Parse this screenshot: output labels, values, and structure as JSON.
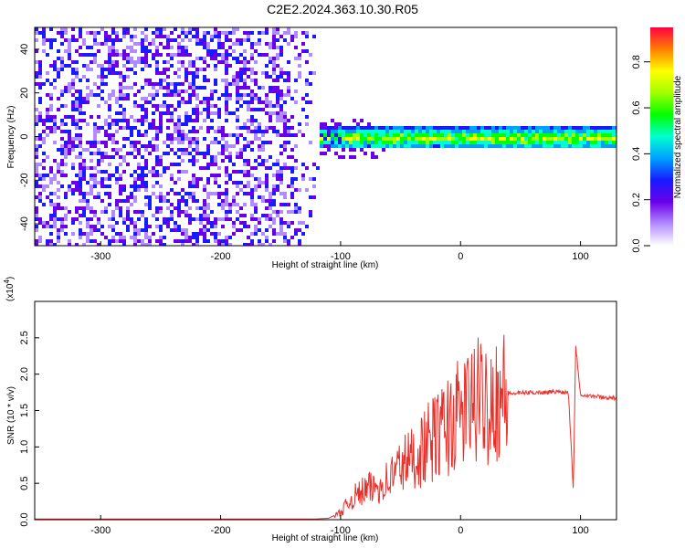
{
  "title": "C2E2.2024.363.10.30.R05",
  "chart_data": [
    {
      "type": "heatmap",
      "xlabel": "Height of straight line (km)",
      "ylabel": "Frequency (Hz)",
      "xlim": [
        -355,
        130
      ],
      "ylim": [
        -50,
        50
      ],
      "xticks": [
        -300,
        -200,
        -100,
        0,
        100
      ],
      "yticks": [
        -40,
        -20,
        0,
        20,
        40
      ],
      "colorbar": {
        "label": "Normalized spectral amplitude",
        "range": [
          0.0,
          0.95
        ],
        "ticks": [
          0.0,
          0.2,
          0.4,
          0.6,
          0.8
        ],
        "tick_labels": [
          "0.0",
          "0.2",
          "0.4",
          "0.6",
          "0.8"
        ],
        "colormap": [
          "#ffffff",
          "#b28cff",
          "#6a00e8",
          "#1a1aff",
          "#00a0ff",
          "#00ffd0",
          "#00ff00",
          "#a0ff00",
          "#ffff00",
          "#ff8000",
          "#ff0040"
        ]
      },
      "regions": [
        {
          "description_x_range": [
            -355,
            -120
          ],
          "freq_range": [
            -50,
            50
          ],
          "level": 0.25
        },
        {
          "description_x_range": [
            -120,
            130
          ],
          "freq_range": [
            -5,
            5
          ],
          "level": 0.6
        }
      ]
    },
    {
      "type": "line",
      "xlabel": "Height of straight line (km)",
      "ylabel": "SNR (10 * v/v)",
      "y_multiplier": "(x10",
      "y_multiplier_exp": "4",
      "y_multiplier_close": ")",
      "xlim": [
        -355,
        130
      ],
      "ylim": [
        0,
        3.0
      ],
      "xticks": [
        -300,
        -200,
        -100,
        0,
        100
      ],
      "yticks": [
        0.0,
        0.5,
        1.0,
        1.5,
        2.0,
        2.5
      ],
      "ytick_labels": [
        "0.0",
        "0.5",
        "1.0",
        "1.5",
        "2.0",
        "2.5"
      ],
      "color": "#e8302a",
      "series": [
        {
          "x": [
            -355,
            -300,
            -200,
            -120,
            -110,
            -100,
            -90,
            -80,
            -70,
            -60,
            -50,
            -40,
            -30,
            -20,
            -10,
            0,
            10,
            20,
            30,
            40,
            50,
            60,
            70,
            80,
            90,
            94,
            96,
            100,
            110,
            120,
            130
          ],
          "y": [
            0.01,
            0.01,
            0.01,
            0.01,
            0.02,
            0.1,
            0.3,
            0.4,
            0.45,
            0.55,
            0.75,
            0.85,
            1.0,
            1.15,
            1.3,
            1.45,
            1.6,
            1.65,
            1.7,
            1.73,
            1.74,
            1.75,
            1.75,
            1.76,
            1.75,
            0.4,
            2.4,
            1.72,
            1.7,
            1.68,
            1.67
          ]
        }
      ]
    }
  ]
}
